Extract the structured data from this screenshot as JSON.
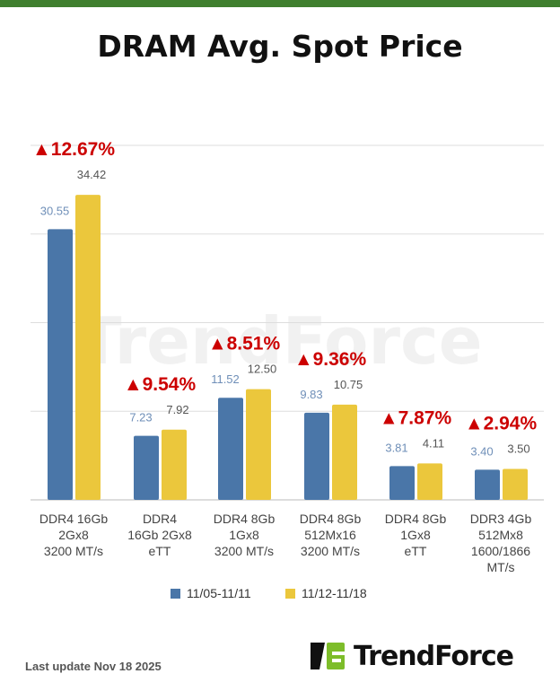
{
  "title": "DRAM Avg. Spot Price",
  "footer": {
    "last_update": "Last update Nov 18  2025",
    "logo_text": "TrendForce"
  },
  "watermark": "TrendForce",
  "colors": {
    "series1": "#4a76a8",
    "series2": "#ebc73c",
    "change": "#cc0000",
    "topbar": "#3f7f2e",
    "logo_green": "#7dbd2a"
  },
  "chart_data": {
    "type": "bar",
    "title": "DRAM Avg. Spot Price",
    "categories": [
      [
        "DDR4 16Gb",
        "2Gx8",
        "3200 MT/s"
      ],
      [
        "DDR4",
        "16Gb 2Gx8",
        "eTT"
      ],
      [
        "DDR4 8Gb",
        "1Gx8",
        "3200 MT/s"
      ],
      [
        "DDR4 8Gb",
        "512Mx16",
        "3200 MT/s"
      ],
      [
        "DDR4 8Gb",
        "1Gx8",
        "eTT"
      ],
      [
        "DDR3 4Gb",
        "512Mx8",
        "1600/1866",
        "MT/s"
      ]
    ],
    "series": [
      {
        "name": "11/05-11/11",
        "values": [
          30.55,
          7.23,
          11.52,
          9.83,
          3.81,
          3.4
        ],
        "labels": [
          "30.55",
          "7.23",
          "11.52",
          "9.83",
          "3.81",
          "3.40"
        ]
      },
      {
        "name": "11/12-11/18",
        "values": [
          34.42,
          7.92,
          12.5,
          10.75,
          4.11,
          3.5
        ],
        "labels": [
          "34.42",
          "7.92",
          "12.50",
          "10.75",
          "4.11",
          "3.50"
        ]
      }
    ],
    "changes": [
      "▲12.67%",
      "▲9.54%",
      "▲8.51%",
      "▲9.36%",
      "▲7.87%",
      "▲2.94%"
    ],
    "ylim": [
      0,
      40
    ],
    "yticks": [
      0,
      10,
      20,
      30,
      40
    ],
    "ytick_labels_shown": false,
    "grid": true,
    "legend": "bottom"
  }
}
